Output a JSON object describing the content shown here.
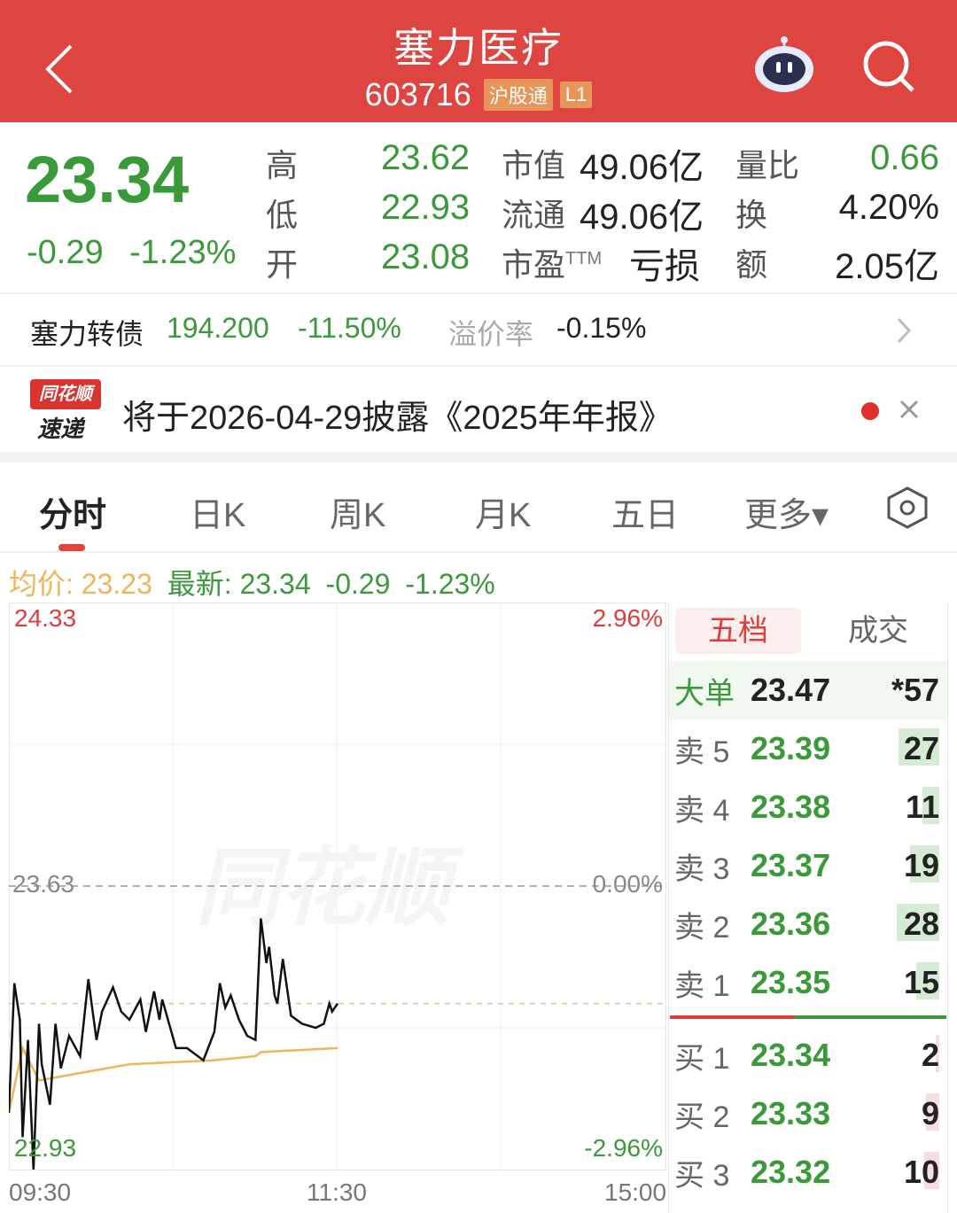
{
  "header": {
    "title": "塞力医疗",
    "code": "603716",
    "badges": [
      "沪股通",
      "L1"
    ],
    "back_icon": "chevron-left-icon",
    "robot_icon": "robot-assistant-icon",
    "search_icon": "search-icon",
    "bg_color": "#de4440"
  },
  "quote": {
    "price": "23.34",
    "change": "-0.29",
    "change_pct": "-1.23%",
    "stats": [
      {
        "label": "高",
        "value": "23.62"
      },
      {
        "label": "低",
        "value": "22.93"
      },
      {
        "label": "开",
        "value": "23.08"
      },
      {
        "label": "市值",
        "value": "49.06亿"
      },
      {
        "label": "流通",
        "value": "49.06亿"
      },
      {
        "label": "市盈",
        "sup": "TTM",
        "value": "亏损"
      },
      {
        "label": "量比",
        "value": "0.66"
      },
      {
        "label": "换",
        "value": "4.20%"
      },
      {
        "label": "额",
        "value": "2.05亿"
      }
    ]
  },
  "bond": {
    "name": "塞力转债",
    "price": "194.200",
    "change_pct": "-11.50%",
    "premium_label": "溢价率",
    "premium": "-0.15%"
  },
  "notice": {
    "logo_top": "同花顺",
    "logo_bottom": "速递",
    "text": "将于2026-04-29披露《2025年年报》"
  },
  "tabs": [
    {
      "label": "分时",
      "active": true
    },
    {
      "label": "日K"
    },
    {
      "label": "周K"
    },
    {
      "label": "月K"
    },
    {
      "label": "五日"
    },
    {
      "label": "更多▾"
    }
  ],
  "summary": {
    "avg_label": "均价:",
    "avg": "23.23",
    "last_label": "最新:",
    "last": "23.34",
    "change": "-0.29",
    "change_pct": "-1.23%"
  },
  "colors": {
    "up": "#e03c3c",
    "down": "#3a9a3a",
    "avg_line": "#f0b45a",
    "price_line": "#111111"
  },
  "chart_data": {
    "type": "line",
    "watermark": "同花顺",
    "y_left": {
      "max": "24.33",
      "mid": "23.63",
      "min": "22.93"
    },
    "y_right": {
      "max": "2.96%",
      "mid": "0.00%",
      "min": "-2.96%"
    },
    "x_ticks": [
      "09:30",
      "11:30",
      "15:00"
    ],
    "ylim": [
      22.93,
      24.33
    ],
    "prev_close": 23.63,
    "series": [
      {
        "key": "price",
        "points": [
          [
            "09:30",
            23.07
          ],
          [
            "09:32",
            23.39
          ],
          [
            "09:34",
            23.3
          ],
          [
            "09:35",
            23.01
          ],
          [
            "09:37",
            23.25
          ],
          [
            "09:39",
            22.93
          ],
          [
            "09:41",
            23.29
          ],
          [
            "09:42",
            23.19
          ],
          [
            "09:45",
            23.09
          ],
          [
            "09:47",
            23.29
          ],
          [
            "09:49",
            23.18
          ],
          [
            "09:52",
            23.26
          ],
          [
            "09:56",
            23.21
          ],
          [
            "09:59",
            23.4
          ],
          [
            "10:02",
            23.25
          ],
          [
            "10:04",
            23.32
          ],
          [
            "10:08",
            23.38
          ],
          [
            "10:11",
            23.32
          ],
          [
            "10:14",
            23.3
          ],
          [
            "10:18",
            23.35
          ],
          [
            "10:20",
            23.27
          ],
          [
            "10:23",
            23.37
          ],
          [
            "10:25",
            23.3
          ],
          [
            "10:26",
            23.35
          ],
          [
            "10:31",
            23.23
          ],
          [
            "10:35",
            23.23
          ],
          [
            "10:41",
            23.2
          ],
          [
            "10:45",
            23.27
          ],
          [
            "10:47",
            23.39
          ],
          [
            "10:49",
            23.33
          ],
          [
            "10:51",
            23.36
          ],
          [
            "10:54",
            23.3
          ],
          [
            "10:57",
            23.26
          ],
          [
            "11:00",
            23.25
          ],
          [
            "11:02",
            23.55
          ],
          [
            "11:04",
            23.44
          ],
          [
            "11:05",
            23.48
          ],
          [
            "11:07",
            23.36
          ],
          [
            "11:08",
            23.34
          ],
          [
            "11:10",
            23.45
          ],
          [
            "11:13",
            23.31
          ],
          [
            "11:17",
            23.29
          ],
          [
            "11:22",
            23.28
          ],
          [
            "11:25",
            23.29
          ],
          [
            "11:27",
            23.34
          ],
          [
            "11:28",
            23.32
          ],
          [
            "11:30",
            23.34
          ]
        ]
      },
      {
        "key": "avg",
        "points": [
          [
            "09:30",
            23.07
          ],
          [
            "09:35",
            23.23
          ],
          [
            "09:41",
            23.15
          ],
          [
            "10:14",
            23.19
          ],
          [
            "10:45",
            23.2
          ],
          [
            "11:00",
            23.21
          ],
          [
            "11:02",
            23.22
          ],
          [
            "11:30",
            23.23
          ]
        ]
      }
    ]
  },
  "orderbook": {
    "tabs": [
      "五档",
      "成交"
    ],
    "big": {
      "label": "大单",
      "price": "23.47",
      "vol": "*57"
    },
    "asks": [
      {
        "label": "卖 5",
        "price": "23.39",
        "vol": "27"
      },
      {
        "label": "卖 4",
        "price": "23.38",
        "vol": "11"
      },
      {
        "label": "卖 3",
        "price": "23.37",
        "vol": "19"
      },
      {
        "label": "卖 2",
        "price": "23.36",
        "vol": "28"
      },
      {
        "label": "卖 1",
        "price": "23.35",
        "vol": "15"
      }
    ],
    "bids": [
      {
        "label": "买 1",
        "price": "23.34",
        "vol": "2"
      },
      {
        "label": "买 2",
        "price": "23.33",
        "vol": "9"
      },
      {
        "label": "买 3",
        "price": "23.32",
        "vol": "10"
      }
    ]
  }
}
